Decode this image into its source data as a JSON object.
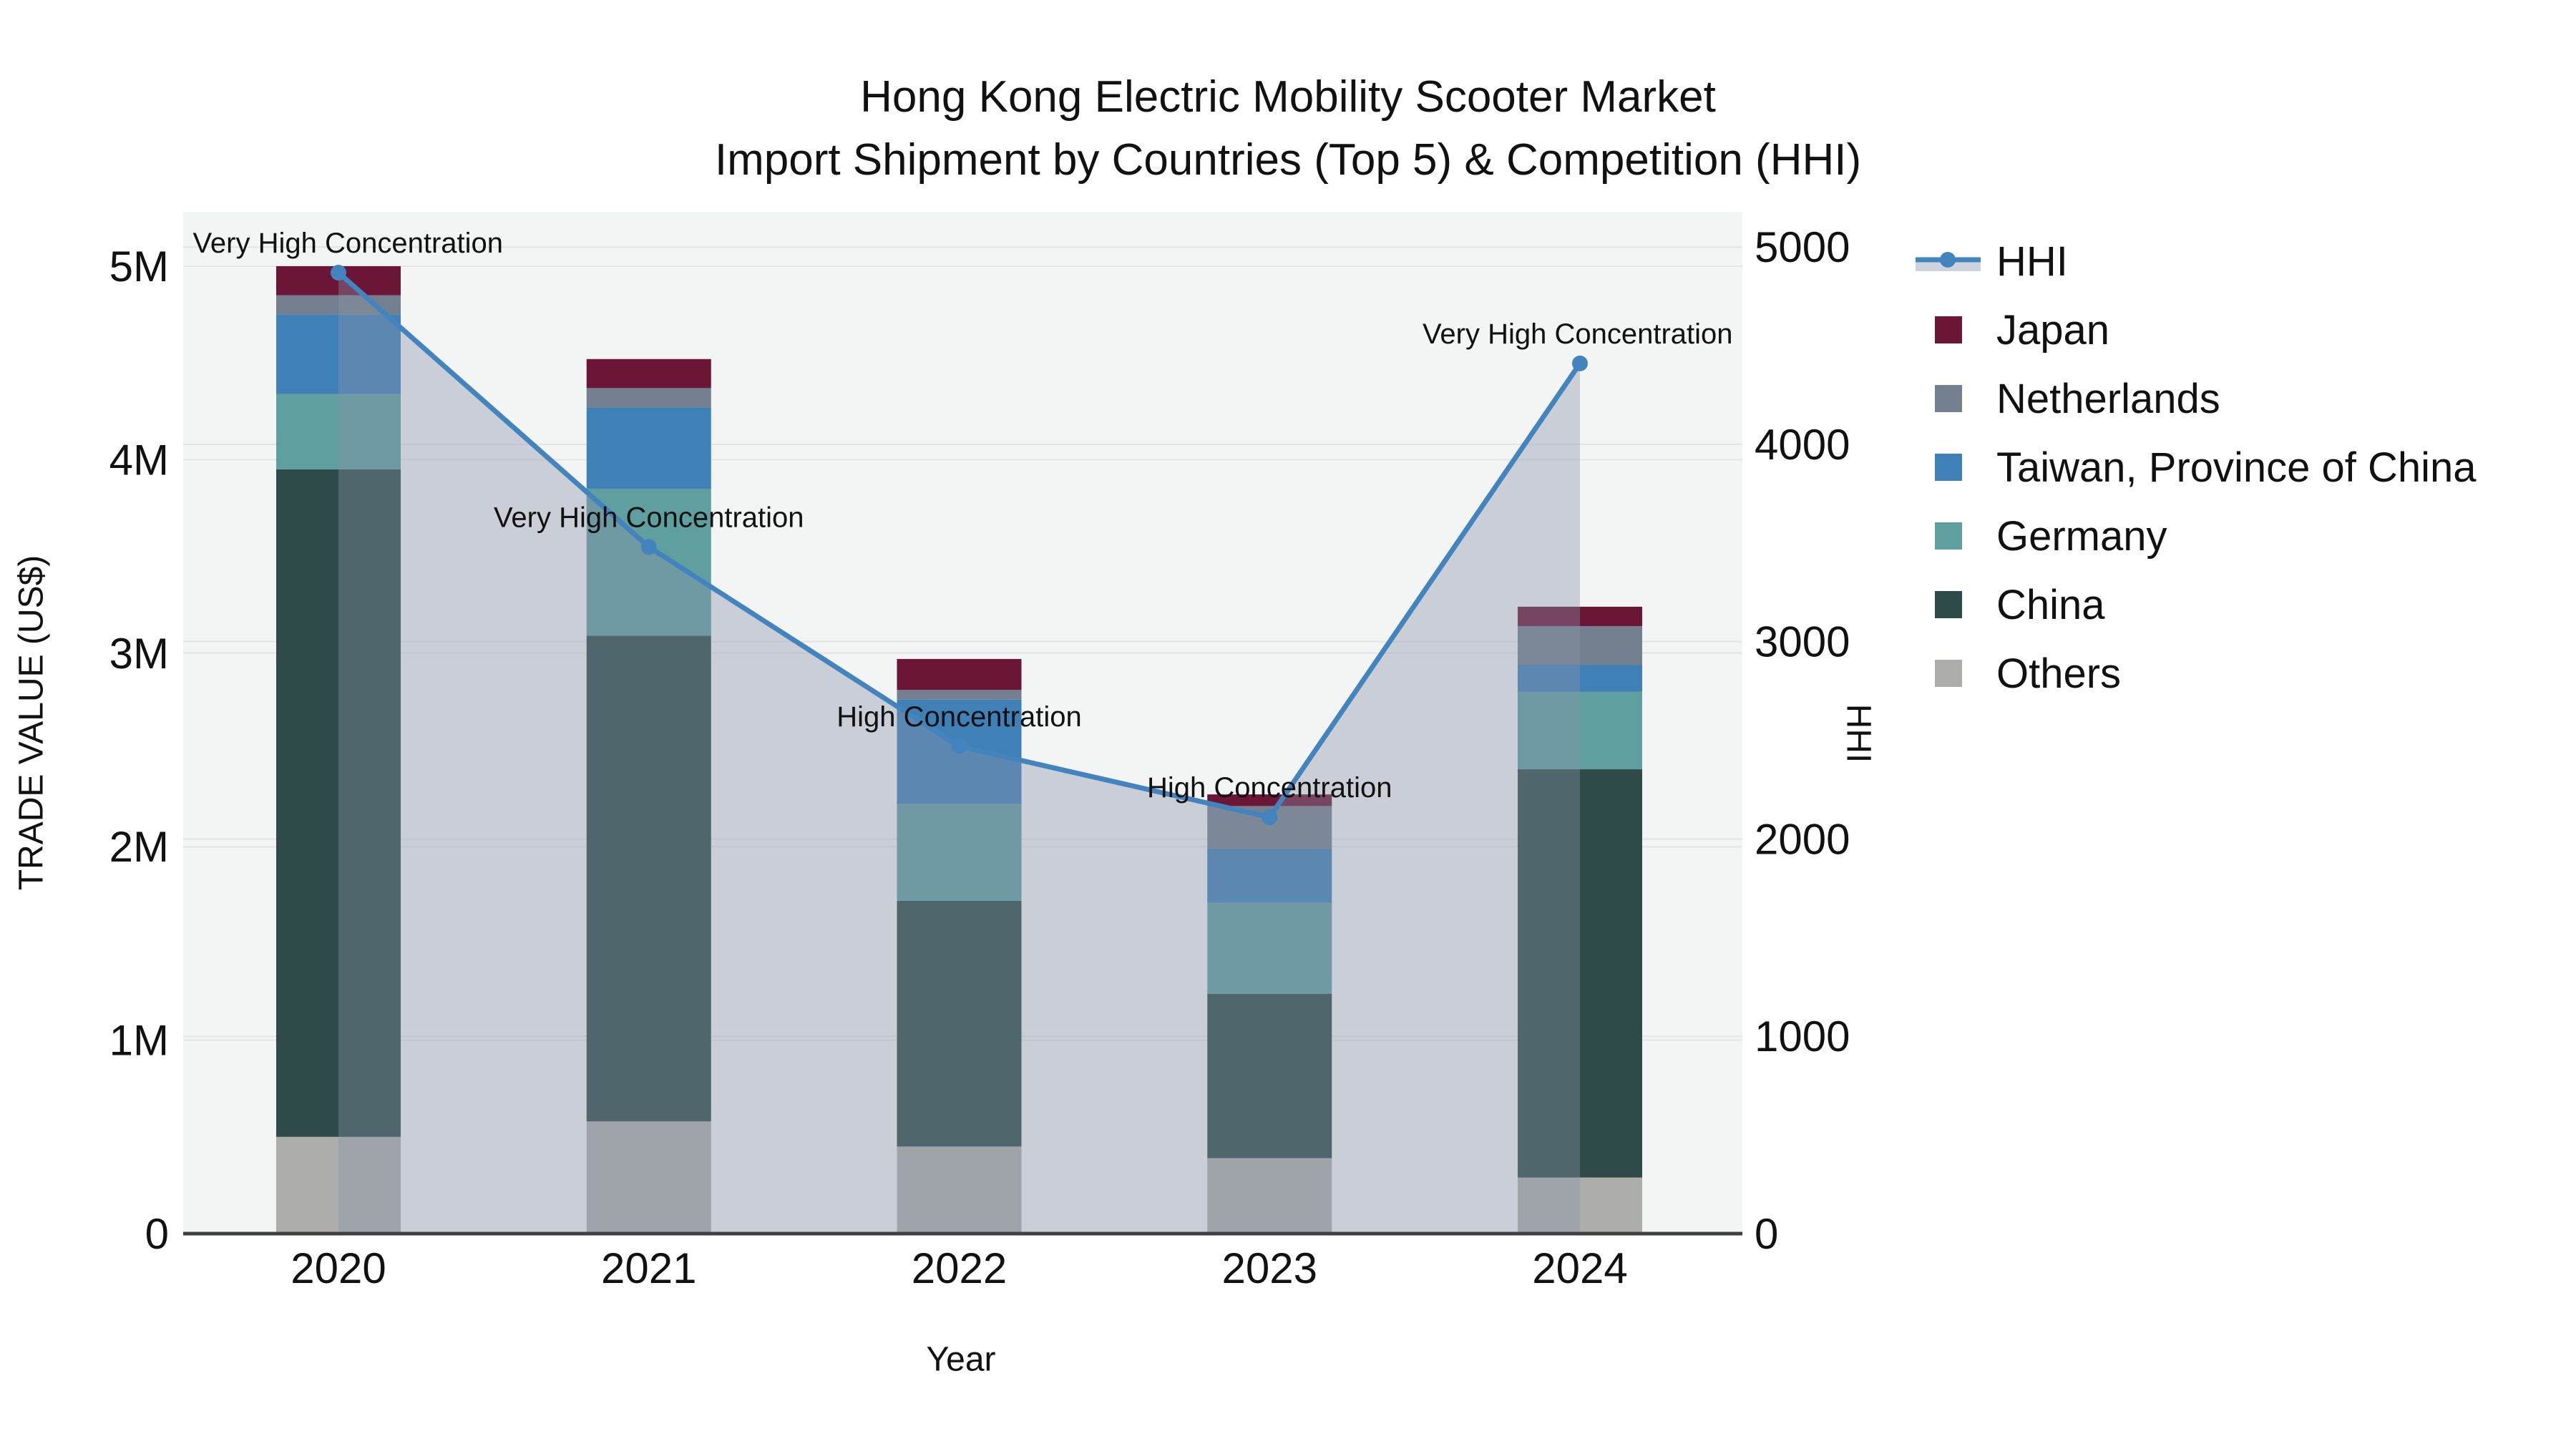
{
  "title": {
    "line1": "Hong Kong Electric Mobility Scooter Market",
    "line2": "Import Shipment by Countries (Top 5) & Competition (HHI)"
  },
  "chart_data": {
    "type": "bar",
    "subtype": "stacked-bars-with-line-overlay",
    "title": "Hong Kong Electric Mobility Scooter Market Import Shipment by Countries (Top 5) & Competition (HHI)",
    "xlabel": "Year",
    "ylabel_left": "TRADE VALUE (US$)",
    "ylabel_right": "HHI",
    "categories": [
      "2020",
      "2021",
      "2022",
      "2023",
      "2024"
    ],
    "left_axis": {
      "ticks": [
        "0",
        "1M",
        "2M",
        "3M",
        "4M",
        "5M"
      ],
      "range": [
        0,
        5000000
      ],
      "grid": true
    },
    "right_axis": {
      "ticks": [
        "0",
        "1000",
        "2000",
        "3000",
        "4000",
        "5000"
      ],
      "range": [
        0,
        5000
      ],
      "grid": true
    },
    "bar_series": [
      {
        "name": "Others",
        "color": "#ADADAB",
        "values": [
          500000,
          580000,
          450000,
          390000,
          290000
        ]
      },
      {
        "name": "China",
        "color": "#2E4B49",
        "values": [
          3450000,
          2510000,
          1270000,
          850000,
          2110000
        ]
      },
      {
        "name": "Germany",
        "color": "#5F9FA0",
        "values": [
          390000,
          760000,
          500000,
          470000,
          400000
        ]
      },
      {
        "name": "Taiwan, Province of China",
        "color": "#3F80B7",
        "values": [
          410000,
          420000,
          540000,
          280000,
          140000
        ]
      },
      {
        "name": "Netherlands",
        "color": "#74808F",
        "values": [
          100000,
          100000,
          50000,
          220000,
          200000
        ]
      },
      {
        "name": "Japan",
        "color": "#6B1637",
        "values": [
          150000,
          150000,
          160000,
          60000,
          100000
        ]
      }
    ],
    "bar_totals": [
      5000000,
      4520000,
      2970000,
      2270000,
      3240000
    ],
    "line_series": {
      "name": "HHI",
      "color": "#4484BE",
      "area_fill_color": "rgba(136,148,168,0.38)",
      "values": [
        4870,
        3480,
        2470,
        2110,
        4410
      ]
    },
    "annotations": [
      "Very High Concentration",
      "Very High Concentration",
      "High Concentration",
      "High Concentration",
      "Very High Concentration"
    ],
    "legend": [
      {
        "label": "HHI",
        "type": "line",
        "color": "#4484BE",
        "band_color": "#CCD3DC"
      },
      {
        "label": "Japan",
        "type": "swatch",
        "color": "#6B1637"
      },
      {
        "label": "Netherlands",
        "type": "swatch",
        "color": "#74808F"
      },
      {
        "label": "Taiwan, Province of China",
        "type": "swatch",
        "color": "#3F80B7"
      },
      {
        "label": "Germany",
        "type": "swatch",
        "color": "#5F9FA0"
      },
      {
        "label": "China",
        "type": "swatch",
        "color": "#2E4B49"
      },
      {
        "label": "Others",
        "type": "swatch",
        "color": "#ADADAB"
      }
    ],
    "style": {
      "plot_bg": "#F3F4F4",
      "grid_color": "#E4E4E4",
      "axis_line_color": "#3F3F3F",
      "text_color": "#111111"
    }
  }
}
